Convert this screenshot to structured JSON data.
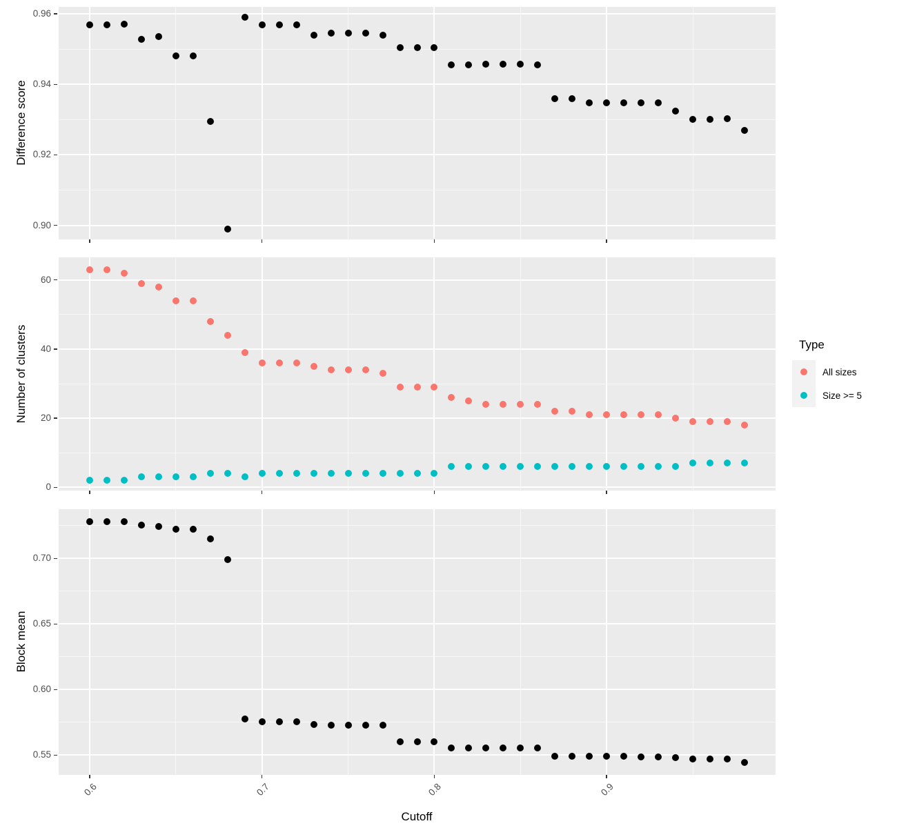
{
  "x_axis": {
    "title": "Cutoff",
    "xlim": [
      0.582,
      0.998
    ],
    "values": [
      0.6,
      0.61,
      0.62,
      0.63,
      0.64,
      0.65,
      0.66,
      0.67,
      0.68,
      0.69,
      0.7,
      0.71,
      0.72,
      0.73,
      0.74,
      0.75,
      0.76,
      0.77,
      0.78,
      0.79,
      0.8,
      0.81,
      0.82,
      0.83,
      0.84,
      0.85,
      0.86,
      0.87,
      0.88,
      0.89,
      0.9,
      0.91,
      0.92,
      0.93,
      0.94,
      0.95,
      0.96,
      0.97,
      0.98
    ],
    "ticks": {
      "values": [
        0.6,
        0.7,
        0.8,
        0.9
      ],
      "labels": [
        "0.6",
        "0.7",
        "0.8",
        "0.9"
      ],
      "minor": [
        0.65,
        0.75,
        0.85,
        0.95
      ]
    }
  },
  "chart_data": [
    {
      "type": "scatter",
      "panel": "Difference score",
      "ylabel": "Difference score",
      "ylim": [
        0.896,
        0.962
      ],
      "yticks": {
        "values": [
          0.96,
          0.94,
          0.92,
          0.9
        ],
        "labels": [
          "0.96",
          "0.94",
          "0.92",
          "0.90"
        ],
        "minor": [
          0.95,
          0.93,
          0.91
        ]
      },
      "series": [
        {
          "name": "Difference score",
          "color": "#000000",
          "values": [
            0.957,
            0.957,
            0.9572,
            0.9528,
            0.9536,
            0.948,
            0.948,
            0.9295,
            0.899,
            0.959,
            0.957,
            0.957,
            0.957,
            0.954,
            0.9545,
            0.9545,
            0.9545,
            0.954,
            0.9505,
            0.9505,
            0.9505,
            0.9455,
            0.9455,
            0.9457,
            0.9457,
            0.9457,
            0.9455,
            0.936,
            0.936,
            0.9347,
            0.9347,
            0.9347,
            0.9347,
            0.9347,
            0.9325,
            0.93,
            0.93,
            0.9302,
            0.927
          ]
        }
      ]
    },
    {
      "type": "scatter",
      "panel": "Number of clusters",
      "ylabel": "Number of clusters",
      "ylim": [
        -0.9,
        66.5
      ],
      "yticks": {
        "values": [
          60,
          40,
          20,
          0
        ],
        "labels": [
          "60",
          "40",
          "20",
          "0"
        ],
        "minor": [
          50,
          30,
          10
        ]
      },
      "series": [
        {
          "name": "All sizes",
          "color": "#F8766D",
          "values": [
            63,
            63,
            62,
            59,
            58,
            54,
            54,
            48,
            44,
            39,
            36,
            36,
            36,
            35,
            34,
            34,
            34,
            33,
            29,
            29,
            29,
            26,
            25,
            24,
            24,
            24,
            24,
            22,
            22,
            21,
            21,
            21,
            21,
            21,
            20,
            19,
            19,
            19,
            18
          ]
        },
        {
          "name": "Size >= 5",
          "color": "#00BFC4",
          "values": [
            2,
            2,
            2,
            3,
            3,
            3,
            3,
            4,
            4,
            3,
            4,
            4,
            4,
            4,
            4,
            4,
            4,
            4,
            4,
            4,
            4,
            6,
            6,
            6,
            6,
            6,
            6,
            6,
            6,
            6,
            6,
            6,
            6,
            6,
            6,
            7,
            7,
            7,
            7
          ]
        }
      ]
    },
    {
      "type": "scatter",
      "panel": "Block mean",
      "ylabel": "Block mean",
      "ylim": [
        0.535,
        0.7375
      ],
      "yticks": {
        "values": [
          0.7,
          0.65,
          0.6,
          0.55
        ],
        "labels": [
          "0.70",
          "0.65",
          "0.60",
          "0.55"
        ],
        "minor": [
          0.725,
          0.675,
          0.625,
          0.575
        ]
      },
      "series": [
        {
          "name": "Block mean",
          "color": "#000000",
          "values": [
            0.728,
            0.728,
            0.728,
            0.7255,
            0.7245,
            0.722,
            0.722,
            0.715,
            0.699,
            0.5775,
            0.5755,
            0.5757,
            0.5757,
            0.5732,
            0.5728,
            0.5728,
            0.573,
            0.5727,
            0.56,
            0.56,
            0.5605,
            0.5557,
            0.5555,
            0.5555,
            0.5555,
            0.5555,
            0.5553,
            0.5493,
            0.5493,
            0.549,
            0.549,
            0.549,
            0.5488,
            0.5488,
            0.548,
            0.547,
            0.547,
            0.547,
            0.5447
          ]
        }
      ]
    }
  ],
  "legend": {
    "title": "Type",
    "items": [
      {
        "label": "All sizes",
        "color": "#F8766D"
      },
      {
        "label": "Size >= 5",
        "color": "#00BFC4"
      }
    ]
  },
  "colors": {
    "panel_background": "#EBEBEB",
    "gridline": "#FFFFFF",
    "axis_text": "#4D4D4D",
    "tick_mark": "#333333",
    "axis_title": "#000000",
    "legend_key_background": "#F2F2F2"
  }
}
